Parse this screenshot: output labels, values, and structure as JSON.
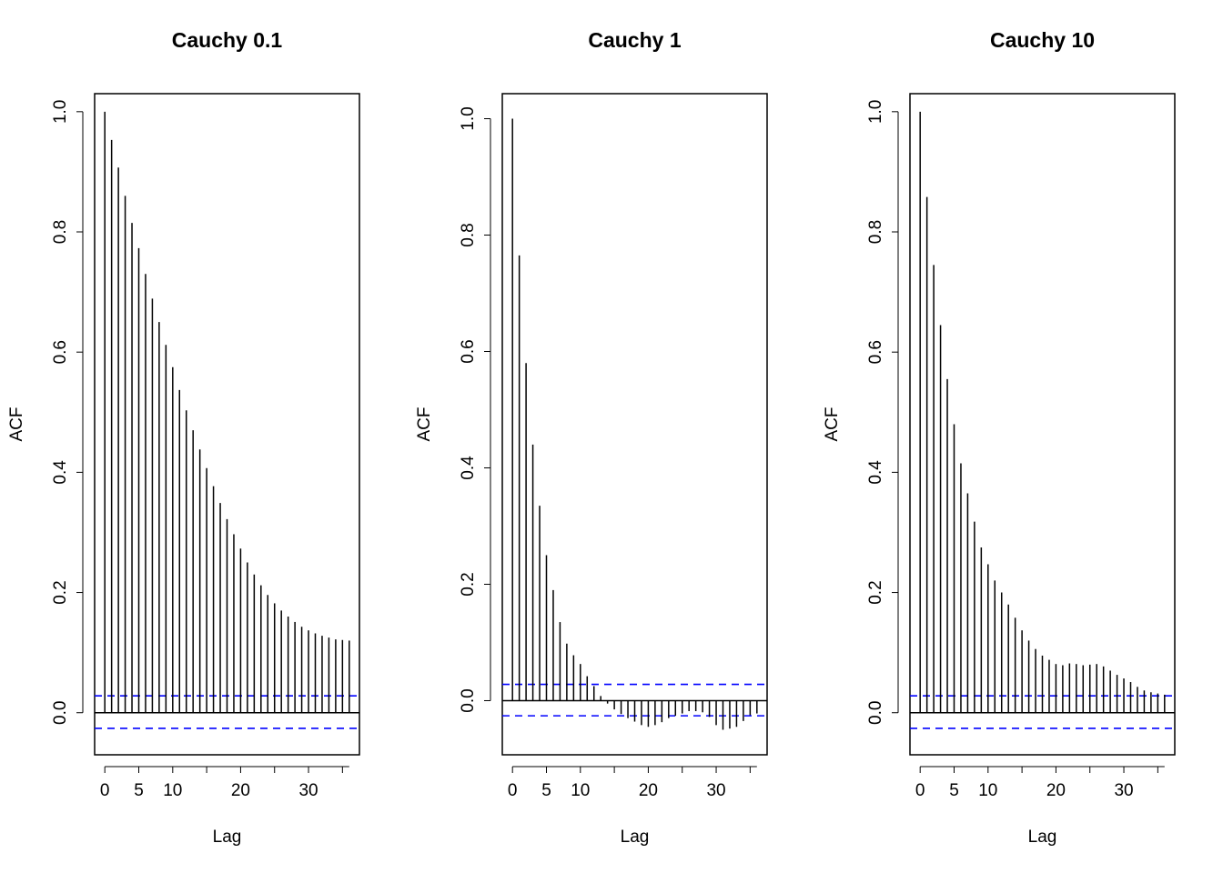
{
  "chart_data": [
    {
      "type": "bar",
      "title": "Cauchy 0.1",
      "xlabel": "Lag",
      "ylabel": "ACF",
      "xlim": [
        -1.5,
        37.5
      ],
      "ylim": [
        -0.07,
        1.03
      ],
      "xticks": [
        0,
        5,
        10,
        20,
        30
      ],
      "yticks": [
        "0.0",
        "0.2",
        "0.4",
        "0.6",
        "0.8",
        "1.0"
      ],
      "ci": [
        0.028,
        -0.026
      ],
      "ci_color": "#0000ff",
      "x": [
        0,
        1,
        2,
        3,
        4,
        5,
        6,
        7,
        8,
        9,
        10,
        11,
        12,
        13,
        14,
        15,
        16,
        17,
        18,
        19,
        20,
        21,
        22,
        23,
        24,
        25,
        26,
        27,
        28,
        29,
        30,
        31,
        32,
        33,
        34,
        35,
        36
      ],
      "values": [
        1.0,
        0.953,
        0.907,
        0.86,
        0.815,
        0.773,
        0.73,
        0.689,
        0.65,
        0.612,
        0.575,
        0.537,
        0.503,
        0.47,
        0.438,
        0.407,
        0.377,
        0.349,
        0.322,
        0.297,
        0.273,
        0.25,
        0.23,
        0.212,
        0.196,
        0.182,
        0.17,
        0.16,
        0.151,
        0.143,
        0.137,
        0.132,
        0.128,
        0.125,
        0.122,
        0.121,
        0.12
      ]
    },
    {
      "type": "bar",
      "title": "Cauchy 1",
      "xlabel": "Lag",
      "ylabel": "ACF",
      "xlim": [
        -1.5,
        37.5
      ],
      "ylim": [
        -0.093,
        1.043
      ],
      "xticks": [
        0,
        5,
        10,
        20,
        30
      ],
      "yticks": [
        "0.0",
        "0.2",
        "0.4",
        "0.6",
        "0.8",
        "1.0"
      ],
      "ci": [
        0.028,
        -0.026
      ],
      "ci_color": "#0000ff",
      "x": [
        0,
        1,
        2,
        3,
        4,
        5,
        6,
        7,
        8,
        9,
        10,
        11,
        12,
        13,
        14,
        15,
        16,
        17,
        18,
        19,
        20,
        21,
        22,
        23,
        24,
        25,
        26,
        27,
        28,
        29,
        30,
        31,
        32,
        33,
        34,
        35,
        36
      ],
      "values": [
        1.0,
        0.765,
        0.58,
        0.44,
        0.335,
        0.25,
        0.19,
        0.135,
        0.098,
        0.078,
        0.063,
        0.042,
        0.025,
        0.008,
        -0.005,
        -0.015,
        -0.023,
        -0.03,
        -0.036,
        -0.042,
        -0.045,
        -0.042,
        -0.037,
        -0.03,
        -0.026,
        -0.022,
        -0.018,
        -0.018,
        -0.02,
        -0.028,
        -0.042,
        -0.05,
        -0.048,
        -0.045,
        -0.035,
        -0.025,
        -0.022
      ]
    },
    {
      "type": "bar",
      "title": "Cauchy 10",
      "xlabel": "Lag",
      "ylabel": "ACF",
      "xlim": [
        -1.5,
        37.5
      ],
      "ylim": [
        -0.07,
        1.03
      ],
      "xticks": [
        0,
        5,
        10,
        20,
        30
      ],
      "yticks": [
        "0.0",
        "0.2",
        "0.4",
        "0.6",
        "0.8",
        "1.0"
      ],
      "ci": [
        0.028,
        -0.026
      ],
      "ci_color": "#0000ff",
      "x": [
        0,
        1,
        2,
        3,
        4,
        5,
        6,
        7,
        8,
        9,
        10,
        11,
        12,
        13,
        14,
        15,
        16,
        17,
        18,
        19,
        20,
        21,
        22,
        23,
        24,
        25,
        26,
        27,
        28,
        29,
        30,
        31,
        32,
        33,
        34,
        35,
        36
      ],
      "values": [
        1.0,
        0.858,
        0.745,
        0.645,
        0.555,
        0.48,
        0.415,
        0.365,
        0.318,
        0.275,
        0.247,
        0.22,
        0.2,
        0.18,
        0.158,
        0.137,
        0.12,
        0.106,
        0.095,
        0.088,
        0.081,
        0.079,
        0.082,
        0.081,
        0.079,
        0.08,
        0.081,
        0.077,
        0.07,
        0.063,
        0.057,
        0.051,
        0.043,
        0.037,
        0.034,
        0.032,
        0.03
      ]
    }
  ]
}
